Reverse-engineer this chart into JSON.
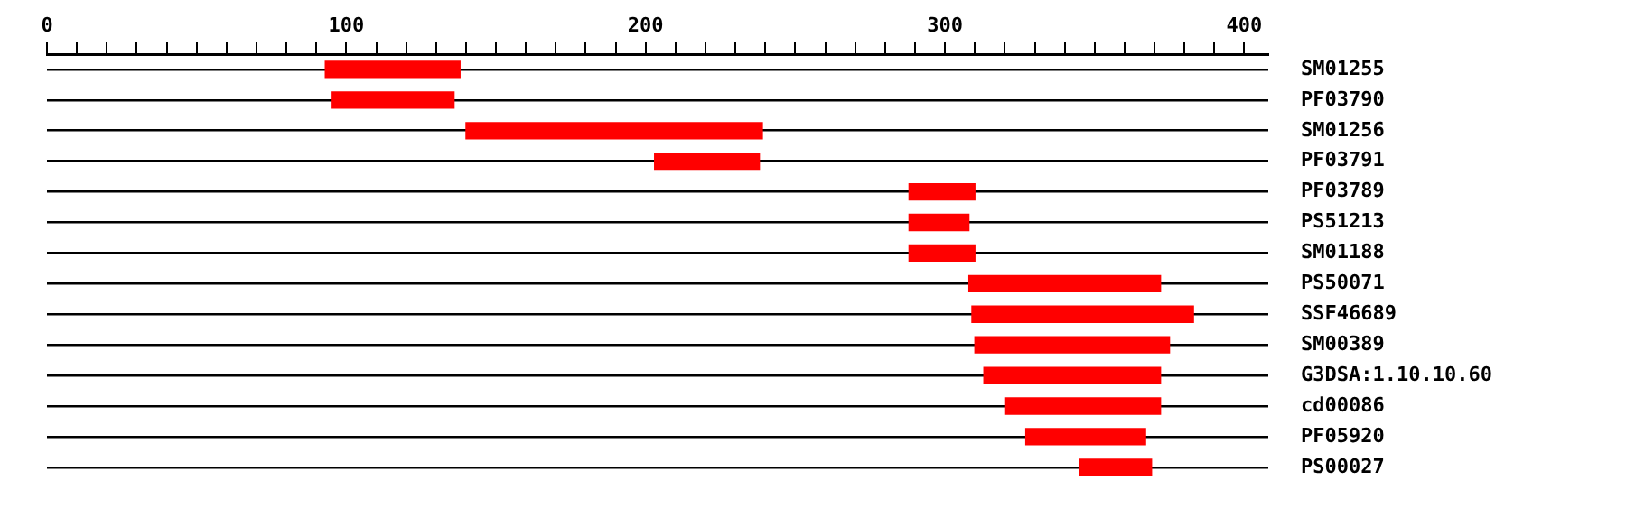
{
  "chart_data": {
    "type": "bar",
    "orientation": "horizontal",
    "categories": [
      "SM01255",
      "PF03790",
      "SM01256",
      "PF03791",
      "PF03789",
      "PS51213",
      "SM01188",
      "PS50071",
      "SSF46689",
      "SM00389",
      "G3DSA:1.10.10.60",
      "cd00086",
      "PF05920",
      "PS00027"
    ],
    "base": [
      93,
      95,
      140,
      203,
      288,
      288,
      288,
      308,
      309,
      310,
      313,
      320,
      327,
      345
    ],
    "values": [
      45,
      41,
      99,
      35,
      22,
      20,
      22,
      64,
      74,
      65,
      59,
      52,
      40,
      24
    ],
    "color": "#ff0000",
    "xlim": [
      0,
      408
    ],
    "xticks": [
      0,
      {
        "value": 10,
        "label": null
      },
      {
        "value": 20,
        "label": null
      },
      {
        "value": 30,
        "label": null
      },
      {
        "value": 40,
        "label": null
      },
      {
        "value": 50,
        "label": null
      },
      {
        "value": 60,
        "label": null
      },
      {
        "value": 70,
        "label": null
      },
      {
        "value": 80,
        "label": null
      },
      {
        "value": 90,
        "label": null
      },
      100,
      {
        "value": 110,
        "label": null
      },
      {
        "value": 120,
        "label": null
      },
      {
        "value": 130,
        "label": null
      },
      {
        "value": 140,
        "label": null
      },
      {
        "value": 150,
        "label": null
      },
      {
        "value": 160,
        "label": null
      },
      {
        "value": 170,
        "label": null
      },
      {
        "value": 180,
        "label": null
      },
      {
        "value": 190,
        "label": null
      },
      200,
      {
        "value": 210,
        "label": null
      },
      {
        "value": 220,
        "label": null
      },
      {
        "value": 230,
        "label": null
      },
      {
        "value": 240,
        "label": null
      },
      {
        "value": 250,
        "label": null
      },
      {
        "value": 260,
        "label": null
      },
      {
        "value": 270,
        "label": null
      },
      {
        "value": 280,
        "label": null
      },
      {
        "value": 290,
        "label": null
      },
      300,
      {
        "value": 310,
        "label": null
      },
      {
        "value": 320,
        "label": null
      },
      {
        "value": 330,
        "label": null
      },
      {
        "value": 340,
        "label": null
      },
      {
        "value": 350,
        "label": null
      },
      {
        "value": 360,
        "label": null
      },
      {
        "value": 370,
        "label": null
      },
      {
        "value": 380,
        "label": null
      },
      {
        "value": 390,
        "label": null
      },
      400
    ],
    "grid": "y",
    "legend": false
  }
}
